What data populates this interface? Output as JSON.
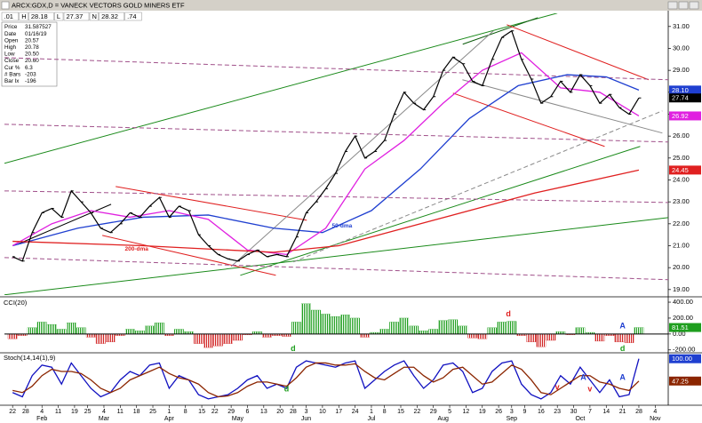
{
  "header": {
    "title": "ARCX:GDX,D = VANECK VECTORS GOLD MINERS ETF",
    "quote": [
      ".01",
      "H",
      "28.18",
      "L",
      "27.37",
      "N",
      "28.32",
      ".74"
    ]
  },
  "info": {
    "rows": [
      [
        "Price",
        "31.587527"
      ],
      [
        "Date",
        "01/16/19"
      ],
      [
        "Open",
        "20.57"
      ],
      [
        "High",
        "20.78"
      ],
      [
        "Low",
        "20.50"
      ],
      [
        "Close",
        "20.60"
      ],
      [
        "Cur %",
        "6.3"
      ],
      [
        "# Bars",
        "-203"
      ],
      [
        "Bar Ix",
        "-196"
      ]
    ]
  },
  "chart_data": [
    {
      "type": "line",
      "color": "#000000",
      "x": [
        0,
        3,
        6,
        9,
        12,
        15,
        18,
        21,
        24,
        27,
        30,
        33,
        36,
        39,
        42,
        45,
        48,
        51,
        54,
        57,
        60,
        63,
        66,
        69,
        72,
        75,
        78,
        81,
        84,
        87,
        90,
        93,
        96,
        99,
        102,
        105,
        108,
        111,
        114,
        117,
        120,
        123,
        126,
        129,
        132,
        135,
        138,
        141,
        144,
        147,
        150,
        153,
        156,
        159,
        162,
        165,
        168,
        171,
        174,
        177,
        180,
        183,
        186,
        189,
        192
      ],
      "values": [
        20.5,
        20.3,
        21.6,
        22.5,
        22.7,
        22.3,
        23.5,
        23.0,
        22.5,
        21.8,
        21.6,
        22.0,
        22.5,
        22.3,
        22.8,
        23.2,
        22.3,
        22.8,
        22.6,
        21.5,
        21.0,
        20.6,
        20.4,
        20.3,
        20.6,
        20.8,
        20.5,
        20.6,
        20.5,
        21.4,
        22.5,
        23.0,
        23.6,
        24.3,
        25.3,
        26.0,
        25.0,
        25.3,
        25.8,
        27.0,
        28.0,
        27.5,
        27.2,
        27.8,
        29.0,
        29.6,
        29.3,
        28.5,
        28.3,
        29.5,
        30.5,
        30.8,
        29.5,
        28.6,
        27.5,
        27.8,
        28.5,
        28.0,
        28.8,
        28.3,
        27.5,
        27.9,
        27.3,
        27.0,
        27.74
      ],
      "xlim": [
        -2.5,
        201
      ],
      "ylim": [
        18.75,
        31.6
      ],
      "yticks": [
        {
          "value": 19,
          "label": "19.00"
        },
        {
          "value": 20,
          "label": "20.00"
        },
        {
          "value": 21,
          "label": "21.00"
        },
        {
          "value": 22,
          "label": "22.00"
        },
        {
          "value": 23,
          "label": "23.00"
        },
        {
          "value": 24,
          "label": "24.00"
        },
        {
          "value": 25,
          "label": "25.00"
        },
        {
          "value": 26,
          "label": "26.00"
        },
        {
          "value": 27,
          "label": "27.00"
        },
        {
          "value": 28,
          "label": "28.00"
        },
        {
          "value": 29,
          "label": "29.00"
        },
        {
          "value": 30,
          "label": "30.00"
        },
        {
          "value": 31,
          "label": "31.00"
        }
      ],
      "series": [
        {
          "color": "#1f3fd0",
          "x": [
            0,
            20,
            40,
            60,
            80,
            95,
            110,
            125,
            140,
            155,
            170,
            182,
            192
          ],
          "values": [
            21.0,
            21.8,
            22.3,
            22.4,
            21.8,
            21.6,
            22.6,
            24.5,
            26.8,
            28.3,
            28.8,
            28.7,
            28.1
          ]
        },
        {
          "color": "#e020e0",
          "x": [
            0,
            12,
            24,
            36,
            48,
            60,
            72,
            84,
            96,
            108,
            120,
            132,
            144,
            156,
            168,
            180,
            192
          ],
          "values": [
            21.0,
            22.0,
            22.6,
            22.3,
            22.6,
            22.2,
            20.8,
            20.6,
            21.8,
            24.5,
            25.8,
            27.5,
            29.0,
            29.8,
            28.2,
            28.0,
            26.92
          ]
        },
        {
          "color": "#e02020",
          "x": [
            0,
            40,
            80,
            100,
            130,
            160,
            192
          ],
          "values": [
            21.2,
            21.0,
            20.7,
            21.0,
            22.2,
            23.4,
            24.45
          ]
        }
      ],
      "lines": [
        {
          "x": [
            -2.5,
            167
          ],
          "y": [
            24.76,
            31.61
          ],
          "color": "#1a8a1a"
        },
        {
          "x": [
            -2.5,
            201
          ],
          "y": [
            18.76,
            22.28
          ],
          "color": "#1a8a1a"
        },
        {
          "x": [
            69.8,
            192.4
          ],
          "y": [
            19.65,
            25.53
          ],
          "color": "#1a8a1a"
        },
        {
          "x": [
            138,
            161
          ],
          "y": [
            30.19,
            31.4
          ],
          "color": "#0a5a0a"
        },
        {
          "x": [
            31.6,
            90.2
          ],
          "y": [
            23.7,
            22.16
          ],
          "color": "#e02020"
        },
        {
          "x": [
            27.5,
            80.7
          ],
          "y": [
            21.47,
            19.65
          ],
          "color": "#e02020"
        },
        {
          "x": [
            151.5,
            195
          ],
          "y": [
            31.08,
            28.57
          ],
          "color": "#e02020"
        },
        {
          "x": [
            135,
            181.5
          ],
          "y": [
            27.96,
            25.53
          ],
          "color": "#e02020"
        },
        {
          "x": [
            67,
            147.4
          ],
          "y": [
            20.05,
            30.8
          ],
          "color": "#8a8a8a"
        },
        {
          "x": [
            86.1,
            199.2
          ],
          "y": [
            20.26,
            27.15
          ],
          "color": "#8a8a8a",
          "dash": true
        },
        {
          "x": [
            137.9,
            199.2
          ],
          "y": [
            28.57,
            26.14
          ],
          "color": "#8a8a8a"
        },
        {
          "x": [
            1.6,
            30.2
          ],
          "y": [
            21.07,
            22.89
          ],
          "color": "#000000"
        },
        {
          "x": [
            -2.5,
            201
          ],
          "y": [
            29.58,
            28.57
          ],
          "color": "#a0508a",
          "dash": true
        },
        {
          "x": [
            -2.5,
            201
          ],
          "y": [
            26.54,
            25.73
          ],
          "color": "#a0508a",
          "dash": true
        },
        {
          "x": [
            -2.5,
            201
          ],
          "y": [
            23.5,
            22.97
          ],
          "color": "#a0508a",
          "dash": true
        },
        {
          "x": [
            -2.5,
            201
          ],
          "y": [
            20.46,
            19.45
          ],
          "color": "#a0508a",
          "dash": true
        }
      ],
      "end_labels": [
        {
          "value": 28.1,
          "label": "28.10",
          "color": "#1f3fd0"
        },
        {
          "value": 27.74,
          "label": "27.74",
          "color": "#000000"
        },
        {
          "value": 26.92,
          "label": "26.92",
          "color": "#e020e0"
        },
        {
          "value": 24.45,
          "label": "24.45",
          "color": "#e02020"
        }
      ],
      "annotations": [
        {
          "text": "200-dma",
          "x": 38,
          "y": 20.85,
          "color": "#e02020"
        },
        {
          "text": "50-dma",
          "x": 101,
          "y": 21.9,
          "color": "#1f3fd0"
        }
      ]
    },
    {
      "type": "bar",
      "title": "CCI(20)",
      "x": [
        0,
        3,
        6,
        9,
        12,
        15,
        18,
        21,
        24,
        27,
        30,
        33,
        36,
        39,
        42,
        45,
        48,
        51,
        54,
        57,
        60,
        63,
        66,
        69,
        72,
        75,
        78,
        81,
        84,
        87,
        90,
        93,
        96,
        99,
        102,
        105,
        108,
        111,
        114,
        117,
        120,
        123,
        126,
        129,
        132,
        135,
        138,
        141,
        144,
        147,
        150,
        153,
        156,
        159,
        162,
        165,
        168,
        171,
        174,
        177,
        180,
        183,
        186,
        189,
        192
      ],
      "values": [
        -60,
        -20,
        80,
        150,
        120,
        60,
        140,
        80,
        -40,
        -120,
        -100,
        -20,
        60,
        40,
        100,
        140,
        -20,
        60,
        30,
        -120,
        -170,
        -150,
        -120,
        -80,
        -10,
        30,
        -40,
        -20,
        -30,
        150,
        380,
        300,
        250,
        220,
        240,
        200,
        -40,
        20,
        60,
        150,
        200,
        100,
        40,
        60,
        170,
        180,
        100,
        -50,
        -60,
        80,
        150,
        160,
        -20,
        -100,
        -160,
        -80,
        30,
        -10,
        80,
        20,
        -90,
        -20,
        -100,
        -110,
        81.51
      ],
      "pos_color": "#1e9e1e",
      "neg_color": "#d02020",
      "xlim": [
        -2.5,
        201
      ],
      "ylim": [
        -225,
        445
      ],
      "yticks": [
        {
          "value": 400,
          "label": "400.00"
        },
        {
          "value": 200,
          "label": "200.00"
        },
        {
          "value": 0,
          "label": "0.00"
        },
        {
          "value": -200,
          "label": "-200.00"
        }
      ],
      "end_labels": [
        {
          "value": 81.51,
          "label": "81.51",
          "color": "#1e9e1e"
        }
      ],
      "annotations": [
        {
          "text": "d",
          "x": 152,
          "y": 250,
          "color": "#e02020"
        },
        {
          "text": "d",
          "x": 86,
          "y": -185,
          "color": "#1e9e1e"
        },
        {
          "text": "A",
          "x": 187,
          "y": 100,
          "color": "#1f3fd0"
        },
        {
          "text": "d",
          "x": 187,
          "y": -190,
          "color": "#1e9e1e"
        }
      ]
    },
    {
      "type": "line",
      "title": "Stoch(14,14(1),9)",
      "x": [
        0,
        3,
        6,
        9,
        12,
        15,
        18,
        21,
        24,
        27,
        30,
        33,
        36,
        39,
        42,
        45,
        48,
        51,
        54,
        57,
        60,
        63,
        66,
        69,
        72,
        75,
        78,
        81,
        84,
        87,
        90,
        93,
        96,
        99,
        102,
        105,
        108,
        111,
        114,
        117,
        120,
        123,
        126,
        129,
        132,
        135,
        138,
        141,
        144,
        147,
        150,
        153,
        156,
        159,
        162,
        165,
        168,
        171,
        174,
        177,
        180,
        183,
        186,
        189,
        192
      ],
      "xlim": [
        -2.5,
        201
      ],
      "ylim": [
        -10,
        112
      ],
      "series": [
        {
          "color": "#1010c0",
          "values": [
            20,
            10,
            60,
            85,
            80,
            40,
            90,
            60,
            30,
            10,
            20,
            50,
            70,
            60,
            85,
            90,
            30,
            60,
            50,
            15,
            5,
            10,
            15,
            30,
            50,
            60,
            30,
            40,
            30,
            80,
            95,
            90,
            85,
            80,
            90,
            95,
            30,
            50,
            70,
            85,
            95,
            60,
            30,
            50,
            85,
            90,
            70,
            20,
            30,
            70,
            90,
            95,
            40,
            15,
            5,
            20,
            60,
            40,
            80,
            50,
            20,
            50,
            10,
            15,
            100
          ]
        },
        {
          "color": "#8b2500",
          "values": [
            25,
            20,
            35,
            60,
            75,
            70,
            70,
            65,
            50,
            30,
            20,
            30,
            50,
            60,
            70,
            80,
            65,
            55,
            50,
            40,
            20,
            10,
            12,
            20,
            35,
            45,
            45,
            40,
            35,
            55,
            80,
            90,
            90,
            85,
            85,
            88,
            70,
            55,
            50,
            65,
            80,
            80,
            60,
            45,
            55,
            75,
            80,
            60,
            40,
            45,
            65,
            85,
            75,
            50,
            20,
            15,
            30,
            45,
            60,
            60,
            45,
            40,
            30,
            25,
            47.25
          ]
        }
      ],
      "end_labels": [
        {
          "value": 100,
          "label": "100.00",
          "color": "#1f3fd0"
        },
        {
          "value": 47.25,
          "label": "47.25",
          "color": "#8b2500"
        }
      ],
      "annotations": [
        {
          "text": "d",
          "x": 84,
          "y": 28,
          "color": "#1e9e1e"
        },
        {
          "text": "v",
          "x": 167,
          "y": 32,
          "color": "#e02020"
        },
        {
          "text": "A",
          "x": 175,
          "y": 55,
          "color": "#1f3fd0"
        },
        {
          "text": "v",
          "x": 177,
          "y": 28,
          "color": "#e02020"
        },
        {
          "text": "A",
          "x": 187,
          "y": 55,
          "color": "#1f3fd0"
        }
      ],
      "xticks": [
        {
          "value": 0,
          "label": "22"
        },
        {
          "value": 4,
          "label": "28"
        },
        {
          "value": 9,
          "label": "4"
        },
        {
          "value": 14,
          "label": "11"
        },
        {
          "value": 19,
          "label": "19"
        },
        {
          "value": 23,
          "label": "25"
        },
        {
          "value": 28,
          "label": "4"
        },
        {
          "value": 33,
          "label": "11"
        },
        {
          "value": 38,
          "label": "18"
        },
        {
          "value": 43,
          "label": "25"
        },
        {
          "value": 48,
          "label": "1"
        },
        {
          "value": 53,
          "label": "8"
        },
        {
          "value": 58,
          "label": "15"
        },
        {
          "value": 62,
          "label": "22"
        },
        {
          "value": 67,
          "label": "29"
        },
        {
          "value": 72,
          "label": "6"
        },
        {
          "value": 77,
          "label": "13"
        },
        {
          "value": 82,
          "label": "20"
        },
        {
          "value": 86,
          "label": "28"
        },
        {
          "value": 90,
          "label": "3"
        },
        {
          "value": 95,
          "label": "10"
        },
        {
          "value": 100,
          "label": "17"
        },
        {
          "value": 105,
          "label": "24"
        },
        {
          "value": 110,
          "label": "1"
        },
        {
          "value": 114,
          "label": "8"
        },
        {
          "value": 119,
          "label": "15"
        },
        {
          "value": 124,
          "label": "22"
        },
        {
          "value": 129,
          "label": "29"
        },
        {
          "value": 134,
          "label": "5"
        },
        {
          "value": 139,
          "label": "12"
        },
        {
          "value": 144,
          "label": "19"
        },
        {
          "value": 149,
          "label": "26"
        },
        {
          "value": 153,
          "label": "3"
        },
        {
          "value": 157,
          "label": "9"
        },
        {
          "value": 162,
          "label": "16"
        },
        {
          "value": 167,
          "label": "23"
        },
        {
          "value": 172,
          "label": "30"
        },
        {
          "value": 177,
          "label": "7"
        },
        {
          "value": 182,
          "label": "14"
        },
        {
          "value": 187,
          "label": "21"
        },
        {
          "value": 192,
          "label": "28"
        },
        {
          "value": 197,
          "label": "4"
        }
      ],
      "month_ticks": [
        {
          "value": 9,
          "label": "Feb"
        },
        {
          "value": 28,
          "label": "Mar"
        },
        {
          "value": 48,
          "label": "Apr"
        },
        {
          "value": 69,
          "label": "May"
        },
        {
          "value": 90,
          "label": "Jun"
        },
        {
          "value": 110,
          "label": "Jul"
        },
        {
          "value": 132,
          "label": "Aug"
        },
        {
          "value": 153,
          "label": "Sep"
        },
        {
          "value": 174,
          "label": "Oct"
        },
        {
          "value": 197,
          "label": "Nov"
        }
      ]
    }
  ]
}
